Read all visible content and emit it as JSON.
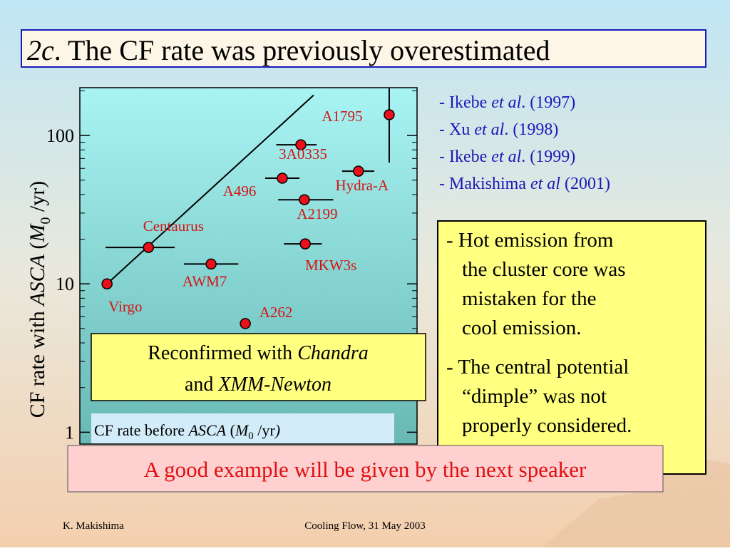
{
  "header": {
    "title": [
      "2c",
      ". The CF rate was previously overestimated"
    ]
  },
  "chart_data": {
    "type": "scatter",
    "log_x": true,
    "log_y": true,
    "ylabel": [
      "CF rate with ",
      "ASCA",
      " (",
      "M",
      "0",
      " /yr)"
    ],
    "xlabel": [
      "CF rate before ",
      "ASCA",
      " (",
      "M",
      "0",
      " /yr",
      ")"
    ],
    "labels": [
      "Virgo",
      "Centaurus",
      "AWM7",
      "A262",
      "MKW3s",
      "A2199",
      "A496",
      "3A0335",
      "Hydra-A",
      "A1795"
    ],
    "x": [
      10,
      18,
      43.7,
      71,
      166,
      164,
      120,
      156,
      353,
      546
    ],
    "values": [
      10,
      17.6,
      13.6,
      5.4,
      18.6,
      36.9,
      51.5,
      86.6,
      57.5,
      138
    ],
    "x_errors": [
      null,
      [
        9.8,
        26.1
      ],
      [
        29.7,
        64.3
      ],
      null,
      [
        122.6,
        210
      ],
      [
        113,
        247
      ],
      [
        94.1,
        153
      ],
      [
        110,
        195
      ],
      [
        280,
        442
      ],
      null
    ],
    "y_errors": [
      null,
      null,
      null,
      null,
      null,
      null,
      null,
      null,
      null,
      [
        65.6,
        211
      ]
    ],
    "fit_line": {
      "x": [
        10,
        187
      ],
      "y": [
        10,
        187
      ]
    },
    "xlim": [
      6.8,
      810
    ],
    "ylim": [
      0.86,
      210
    ],
    "yticks": [
      1,
      10,
      100
    ],
    "minor_yticks": [
      2,
      3,
      4,
      5,
      6,
      7,
      8,
      9,
      20,
      30,
      40,
      50,
      60,
      70,
      80,
      90,
      200
    ],
    "marker_color": "#e8101a",
    "label_color": "#d41414"
  },
  "references": [
    [
      "- Ikebe ",
      "et al",
      ". (1997)"
    ],
    [
      "- Xu ",
      "et al",
      ". (1998)"
    ],
    [
      "- Ikebe ",
      "et al",
      ". (1999)"
    ],
    [
      "- Makishima ",
      "et al",
      " (2001)"
    ]
  ],
  "notes": [
    {
      "lines": [
        "- Hot emission from",
        "the cluster core was",
        "mistaken for the",
        "cool emission."
      ]
    },
    {
      "lines": [
        "- The central potential",
        "“dimple” was not",
        "properly considered."
      ]
    }
  ],
  "callout": [
    [
      "Reconfirmed with ",
      "Chandra"
    ],
    [
      "and ",
      "XMM-Newton"
    ]
  ],
  "banner": "A good example will be given by the next speaker",
  "footer": {
    "left": "K. Makishima",
    "center": "Cooling Flow, 31 May 2003"
  }
}
